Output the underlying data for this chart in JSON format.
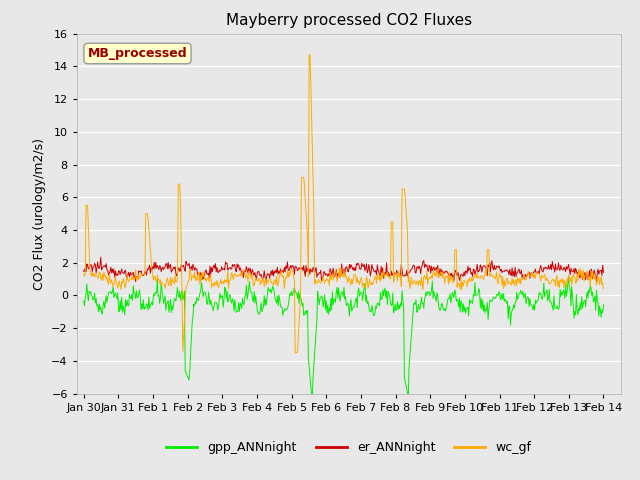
{
  "title": "Mayberry processed CO2 Fluxes",
  "ylabel": "CO2 Flux (urology/m2/s)",
  "xlabel": "",
  "ylim": [
    -6,
    16
  ],
  "yticks": [
    -6,
    -4,
    -2,
    0,
    2,
    4,
    6,
    8,
    10,
    12,
    14,
    16
  ],
  "background_color": "#e8e8e8",
  "plot_bg_color": "#e8e8e8",
  "grid_color": "#ffffff",
  "colors": {
    "gpp": "#00ee00",
    "er": "#cc0000",
    "wc": "#ffaa00"
  },
  "legend_label": "MB_processed",
  "legend_label_color": "#990000",
  "legend_box_color": "#ffffcc",
  "legend_box_edge": "#999999",
  "line_labels": [
    "gpp_ANNnight",
    "er_ANNnight",
    "wc_gf"
  ],
  "n_points": 672,
  "xtick_labels": [
    "Jan 30",
    "Jan 31",
    "Feb 1",
    "Feb 2",
    "Feb 3",
    "Feb 4",
    "Feb 5",
    "Feb 6",
    "Feb 7",
    "Feb 8",
    "Feb 9",
    "Feb 10",
    "Feb 11",
    "Feb 12",
    "Feb 13",
    "Feb 14"
  ],
  "title_fontsize": 11,
  "axis_fontsize": 9,
  "tick_fontsize": 8,
  "legend_fontsize": 9
}
